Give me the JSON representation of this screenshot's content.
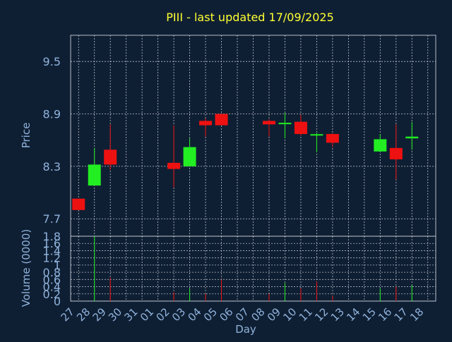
{
  "colors": {
    "background": "#0f1f33",
    "frame": "#b4bcc8",
    "grid": "#d8dde6",
    "title": "#ffff33",
    "tick": "#8fb2dc",
    "up": "#22ee22",
    "down": "#ee1111"
  },
  "chart_data": [
    {
      "type": "candlestick",
      "title": "PIII - last updated 17/09/2025",
      "ylabel": "Price",
      "ylim": [
        7.5,
        9.8
      ],
      "yticks": [
        "9.5",
        "8.9",
        "8.3",
        "7.7"
      ],
      "ytick_values": [
        9.5,
        8.9,
        8.3,
        7.7
      ],
      "grid": true,
      "candles": [
        {
          "x": "27",
          "open": 7.93,
          "high": 7.93,
          "low": 7.8,
          "close": 7.8
        },
        {
          "x": "28",
          "open": 8.08,
          "high": 8.51,
          "low": 8.08,
          "close": 8.32
        },
        {
          "x": "29",
          "open": 8.49,
          "high": 8.78,
          "low": 8.26,
          "close": 8.32
        },
        {
          "x": "02",
          "open": 8.34,
          "high": 8.77,
          "low": 8.06,
          "close": 8.27
        },
        {
          "x": "03",
          "open": 8.3,
          "high": 8.62,
          "low": 8.3,
          "close": 8.52
        },
        {
          "x": "04",
          "open": 8.82,
          "high": 8.85,
          "low": 8.64,
          "close": 8.77
        },
        {
          "x": "05",
          "open": 8.9,
          "high": 8.9,
          "low": 8.77,
          "close": 8.77
        },
        {
          "x": "08",
          "open": 8.82,
          "high": 8.84,
          "low": 8.64,
          "close": 8.78
        },
        {
          "x": "09",
          "open": 8.79,
          "high": 8.91,
          "low": 8.62,
          "close": 8.79
        },
        {
          "x": "10",
          "open": 8.81,
          "high": 8.89,
          "low": 8.65,
          "close": 8.67
        },
        {
          "x": "11",
          "open": 8.66,
          "high": 8.68,
          "low": 8.46,
          "close": 8.66
        },
        {
          "x": "12",
          "open": 8.67,
          "high": 8.68,
          "low": 8.52,
          "close": 8.57
        },
        {
          "x": "15",
          "open": 8.47,
          "high": 8.67,
          "low": 8.47,
          "close": 8.61
        },
        {
          "x": "16",
          "open": 8.51,
          "high": 8.78,
          "low": 8.15,
          "close": 8.38
        },
        {
          "x": "17",
          "open": 8.62,
          "high": 8.81,
          "low": 8.49,
          "close": 8.64
        }
      ]
    },
    {
      "type": "bar",
      "ylabel": "Volume (0000)",
      "xlabel": "Day",
      "ylim": [
        0,
        1.8
      ],
      "yticks": [
        "1.8",
        "1.6",
        "1.4",
        "1.2",
        "1",
        "0.8",
        "0.6",
        "0.4",
        "0.2",
        "0"
      ],
      "ytick_values": [
        1.8,
        1.6,
        1.4,
        1.2,
        1.0,
        0.8,
        0.6,
        0.4,
        0.2,
        0
      ],
      "categories": [
        "27",
        "28",
        "29",
        "30",
        "31",
        "01",
        "02",
        "03",
        "04",
        "05",
        "06",
        "07",
        "08",
        "09",
        "10",
        "11",
        "12",
        "13",
        "14",
        "15",
        "16",
        "17",
        "18"
      ],
      "grid": true,
      "values": [
        {
          "x": "27",
          "volume": 0.0,
          "direction": "down"
        },
        {
          "x": "28",
          "volume": 1.8,
          "direction": "up"
        },
        {
          "x": "29",
          "volume": 0.65,
          "direction": "down"
        },
        {
          "x": "02",
          "volume": 0.25,
          "direction": "down"
        },
        {
          "x": "03",
          "volume": 0.35,
          "direction": "up"
        },
        {
          "x": "04",
          "volume": 0.2,
          "direction": "down"
        },
        {
          "x": "05",
          "volume": 0.6,
          "direction": "down"
        },
        {
          "x": "08",
          "volume": 0.2,
          "direction": "down"
        },
        {
          "x": "09",
          "volume": 0.5,
          "direction": "up"
        },
        {
          "x": "10",
          "volume": 0.35,
          "direction": "down"
        },
        {
          "x": "11",
          "volume": 0.55,
          "direction": "down"
        },
        {
          "x": "12",
          "volume": 0.15,
          "direction": "down"
        },
        {
          "x": "15",
          "volume": 0.35,
          "direction": "up"
        },
        {
          "x": "16",
          "volume": 0.4,
          "direction": "down"
        },
        {
          "x": "17",
          "volume": 0.45,
          "direction": "up"
        }
      ]
    }
  ]
}
